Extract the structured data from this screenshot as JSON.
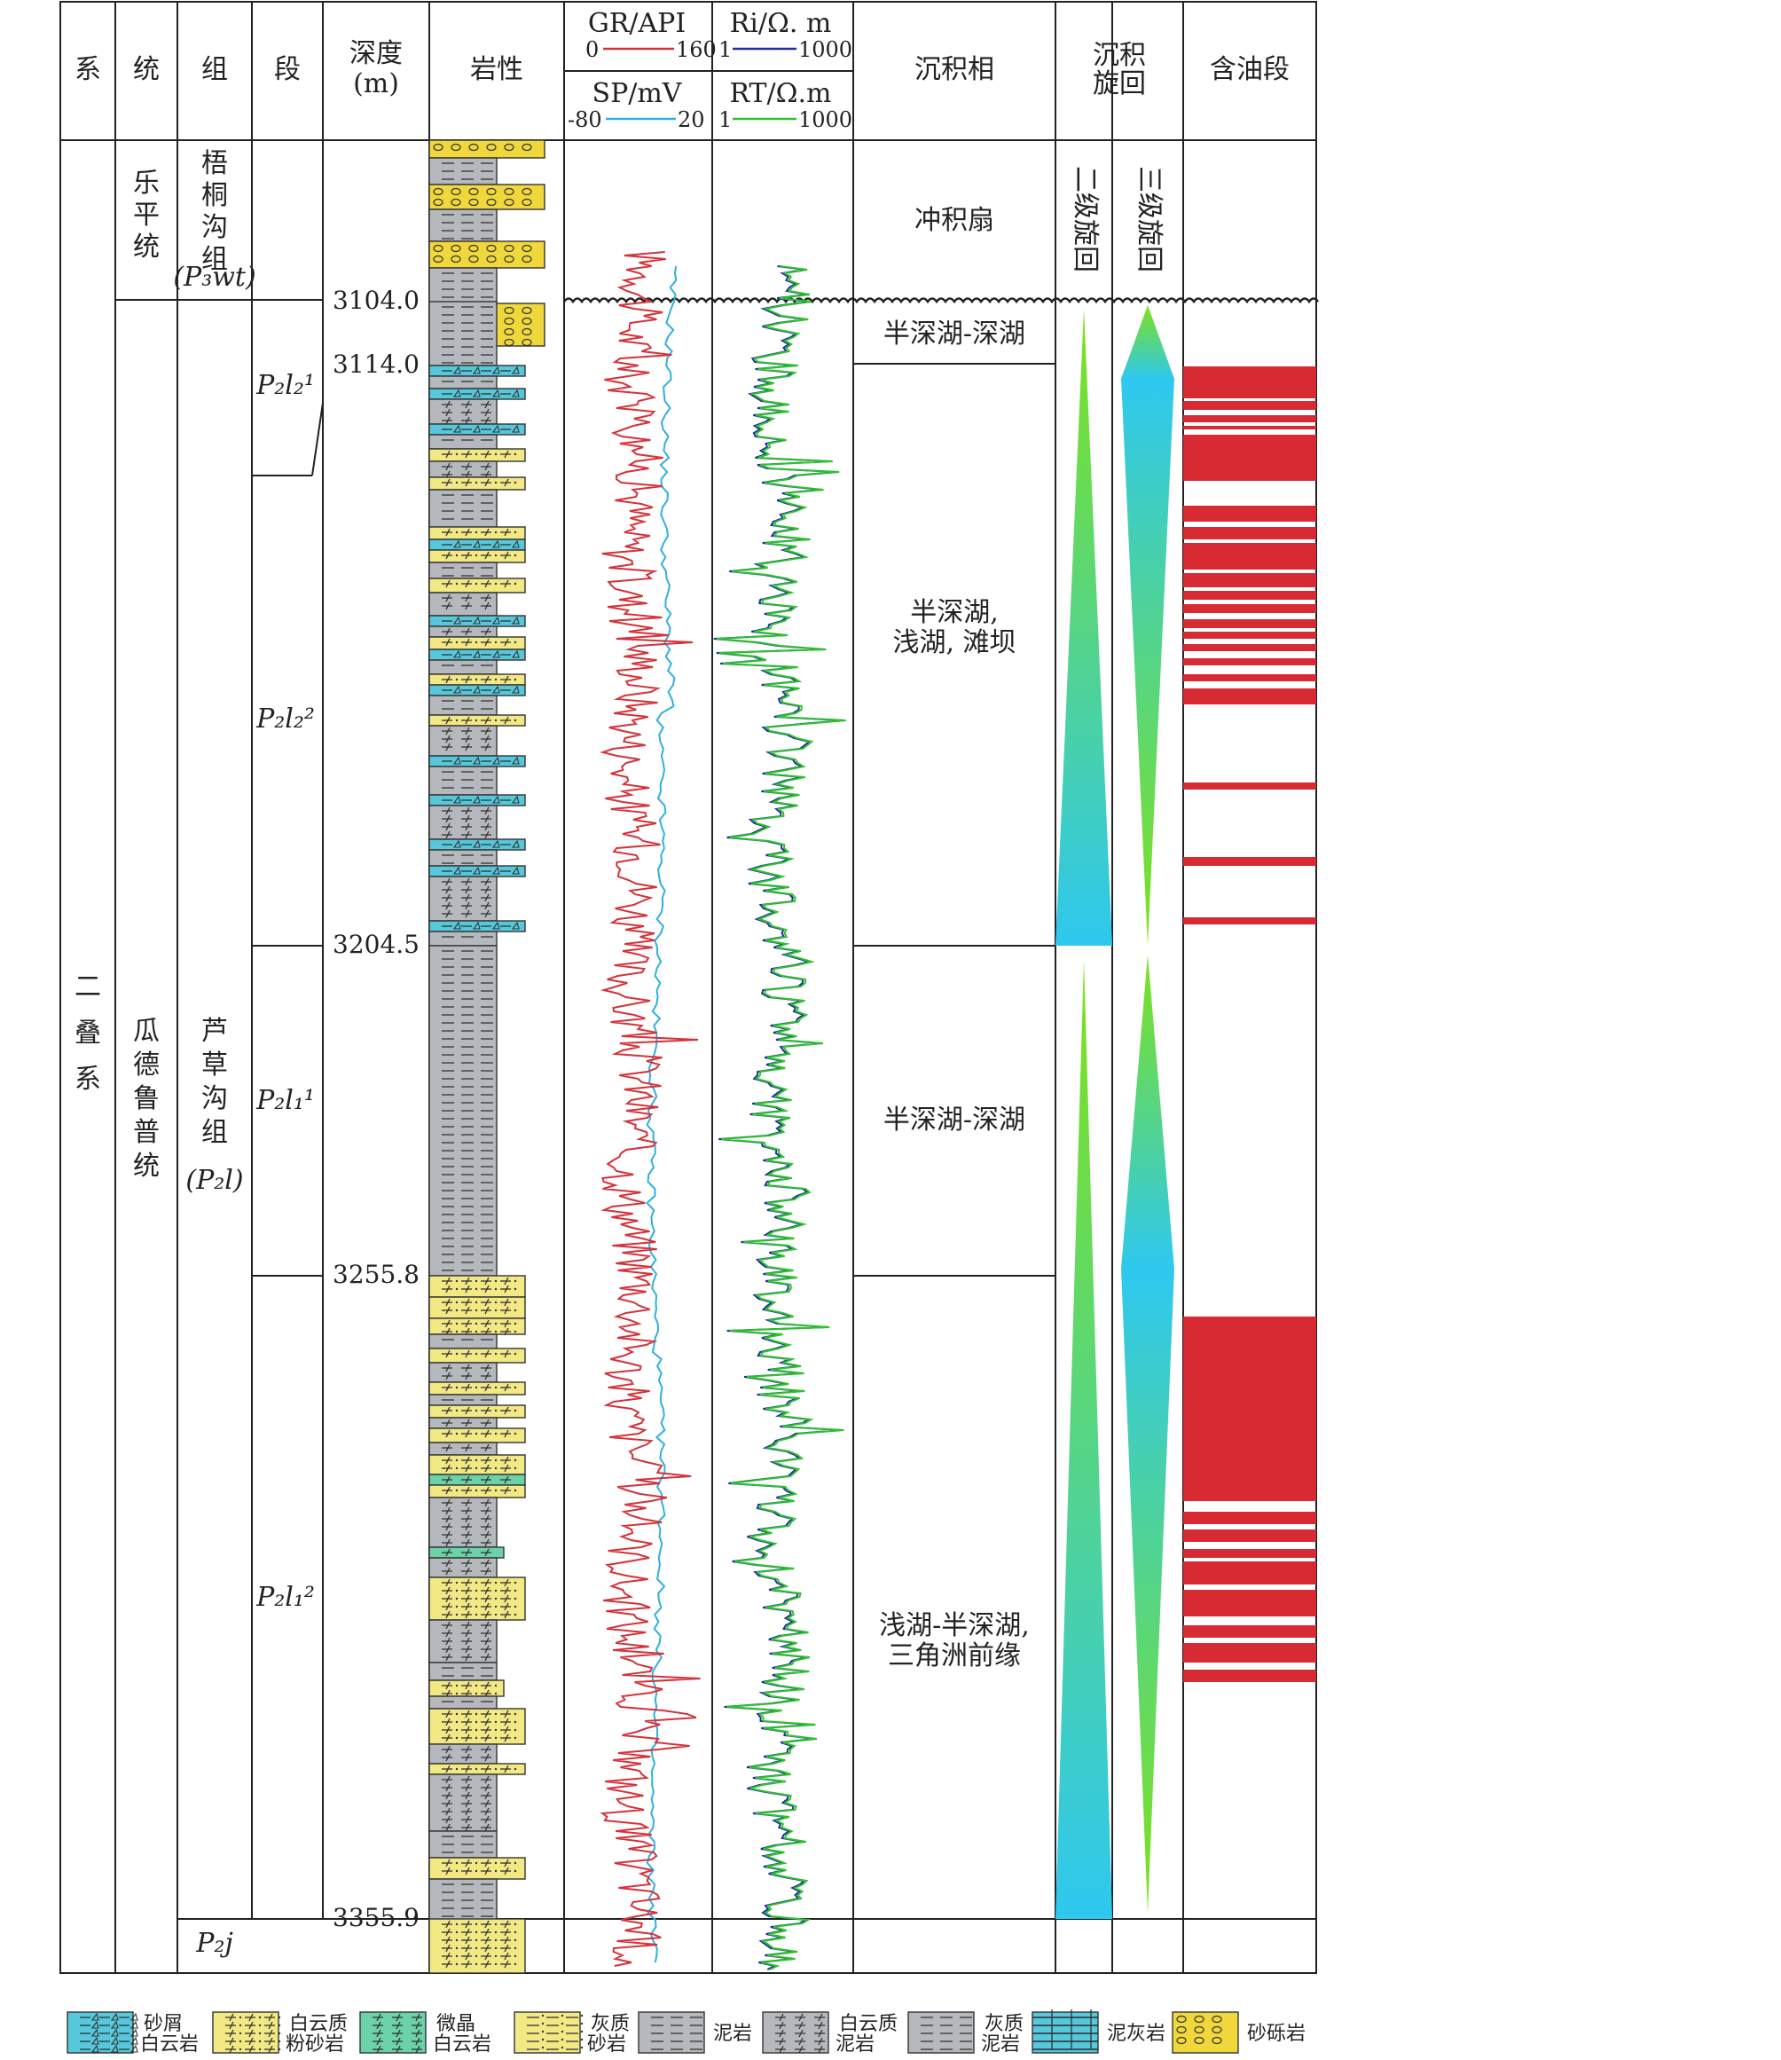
{
  "header": {
    "system": "系",
    "series": "统",
    "formation": "组",
    "member": "段",
    "depth_line1": "深度",
    "depth_line2": "(m)",
    "lithology": "岩性",
    "gr_label": "GR/API",
    "gr_min": "0",
    "gr_max": "160",
    "ri_label": "Ri/Ω. m",
    "ri_min": "1",
    "ri_max": "1000",
    "sp_label": "SP/mV",
    "sp_min": "-80",
    "sp_max": "20",
    "rt_label": "RT/Ω.m",
    "rt_min": "1",
    "rt_max": "1000",
    "facies": "沉积相",
    "cycle_line1": "沉积",
    "cycle_line2": "旋回",
    "oil": "含油段"
  },
  "strata": {
    "system": "二叠系",
    "upper_series": "乐平统",
    "lower_series": "瓜德鲁普统",
    "upper_formation": "梧桐沟组",
    "upper_formation_code": "(P₃wt)",
    "lower_formation": "芦草沟组",
    "lower_formation_code": "(P₂l)",
    "bottom_formation_code": "P₂j",
    "members": [
      "P₂l₂¹",
      "P₂l₂²",
      "P₂l₁¹",
      "P₂l₁²"
    ]
  },
  "depths": [
    "3104.0",
    "3114.0",
    "3204.5",
    "3255.8",
    "3355.9"
  ],
  "facies": [
    "冲积扇",
    "半深湖-深湖",
    "半深湖,",
    "浅湖, 滩坝",
    "半深湖-深湖",
    "浅湖-半深湖,",
    "三角洲前缘"
  ],
  "cycles": {
    "second_order": "二级旋回",
    "third_order": "三级旋回"
  },
  "legend": [
    {
      "key": "sandy_dolomite",
      "line1": "砂屑",
      "line2": "白云岩"
    },
    {
      "key": "dolomitic_siltstone",
      "line1": "白云质",
      "line2": "粉砂岩"
    },
    {
      "key": "micrite_dolomite",
      "line1": "微晶",
      "line2": "白云岩"
    },
    {
      "key": "calcareous_sandstone",
      "line1": "灰质",
      "line2": "砂岩"
    },
    {
      "key": "mudstone",
      "line1": "泥岩",
      "line2": ""
    },
    {
      "key": "dolomitic_mudstone",
      "line1": "白云质",
      "line2": "泥岩"
    },
    {
      "key": "calcareous_mudstone",
      "line1": "灰质",
      "line2": "泥岩"
    },
    {
      "key": "argillaceous_limestone",
      "line1": "泥灰岩",
      "line2": ""
    },
    {
      "key": "conglomerate",
      "line1": "砂砾岩",
      "line2": ""
    }
  ],
  "colors": {
    "gr": "#d3323a",
    "sp": "#2fb0e0",
    "ri": "#1c2f9c",
    "rt": "#2fc02f",
    "oil": "#d82a32",
    "yellow": "#f2e884",
    "cyan": "#56c8dc",
    "gray": "#b5b9bd",
    "green_lith": "#6cd3a8"
  }
}
